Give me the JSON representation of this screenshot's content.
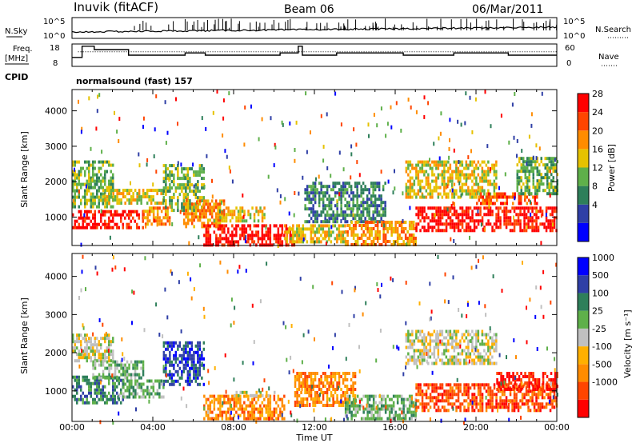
{
  "header": {
    "station": "Inuvik (fitACF)",
    "beam": "Beam 06",
    "date": "06/Mar/2011"
  },
  "top_panels": {
    "nsky": {
      "label": "N.Sky",
      "ticks": [
        "10^5",
        "10^0"
      ],
      "right_label": "N.Search",
      "right_ticks": [
        "10^5",
        "10^0"
      ]
    },
    "freq": {
      "label_line1": "Freq.",
      "label_line2": "[MHz]",
      "ticks": [
        "18",
        "8"
      ],
      "right_label": "Nave",
      "right_ticks": [
        "60",
        "0"
      ],
      "freq_steps": [
        [
          0,
          12
        ],
        [
          0.5,
          12
        ],
        [
          0.5,
          17
        ],
        [
          1.1,
          17
        ],
        [
          1.1,
          15.5
        ],
        [
          2.8,
          15.5
        ],
        [
          2.8,
          13
        ],
        [
          5.6,
          13
        ],
        [
          5.6,
          14
        ],
        [
          6.6,
          14
        ],
        [
          6.6,
          13
        ],
        [
          10.3,
          13
        ],
        [
          10.3,
          14
        ],
        [
          11.2,
          14
        ],
        [
          11.2,
          17
        ],
        [
          11.4,
          17
        ],
        [
          11.4,
          13
        ],
        [
          13.1,
          13
        ],
        [
          13.1,
          14
        ],
        [
          16.4,
          14
        ],
        [
          16.4,
          13
        ],
        [
          18.9,
          13
        ],
        [
          18.9,
          14
        ],
        [
          21.6,
          14
        ],
        [
          21.6,
          13
        ],
        [
          24,
          13
        ]
      ]
    },
    "cpid": {
      "label": "CPID",
      "text": "normalsound (fast) 157"
    }
  },
  "chart_data": [
    {
      "type": "heatmap",
      "name": "power",
      "ylabel": "Slant Range [km]",
      "xlabel": "",
      "xlim": [
        0,
        24
      ],
      "ylim": [
        200,
        4600
      ],
      "yticks": [
        "1000",
        "2000",
        "3000",
        "4000"
      ],
      "colorbar_label": "Power [dB]",
      "colorbar_ticks": [
        "28",
        "24",
        "20",
        "16",
        "12",
        "8",
        "4"
      ],
      "colorbar_colors": [
        "#0000ff",
        "#2f3fa6",
        "#2e7f5a",
        "#5fb04a",
        "#e6c200",
        "#ff8c00",
        "#ff4500",
        "#ff0000"
      ],
      "blobs": [
        {
          "t0": 0.0,
          "t1": 3.5,
          "r0": 700,
          "r1": 1200,
          "bin": 7
        },
        {
          "t0": 3.5,
          "t1": 4.8,
          "r0": 800,
          "r1": 1300,
          "bin": 5
        },
        {
          "t0": 0.0,
          "t1": 2.0,
          "r0": 1300,
          "r1": 2600,
          "bin": 3
        },
        {
          "t0": 1.5,
          "t1": 4.5,
          "r0": 1400,
          "r1": 1800,
          "bin": 4
        },
        {
          "t0": 4.5,
          "t1": 6.5,
          "r0": 1200,
          "r1": 2500,
          "bin": 3
        },
        {
          "t0": 5.5,
          "t1": 7.5,
          "r0": 700,
          "r1": 1500,
          "bin": 5
        },
        {
          "t0": 6.5,
          "t1": 11.0,
          "r0": 250,
          "r1": 800,
          "bin": 7
        },
        {
          "t0": 7.0,
          "t1": 9.5,
          "r0": 900,
          "r1": 1300,
          "bin": 4
        },
        {
          "t0": 10.5,
          "t1": 13.5,
          "r0": 300,
          "r1": 800,
          "bin": 4
        },
        {
          "t0": 11.5,
          "t1": 15.5,
          "r0": 900,
          "r1": 2000,
          "bin": 2
        },
        {
          "t0": 13.5,
          "t1": 17.0,
          "r0": 250,
          "r1": 900,
          "bin": 5
        },
        {
          "t0": 16.5,
          "t1": 21.0,
          "r0": 1600,
          "r1": 2600,
          "bin": 4
        },
        {
          "t0": 17.0,
          "t1": 24.0,
          "r0": 600,
          "r1": 1300,
          "bin": 7
        },
        {
          "t0": 20.0,
          "t1": 23.0,
          "r0": 1400,
          "r1": 1700,
          "bin": 6
        },
        {
          "t0": 22.0,
          "t1": 24.0,
          "r0": 1700,
          "r1": 2700,
          "bin": 3
        }
      ]
    },
    {
      "type": "heatmap",
      "name": "velocity",
      "ylabel": "Slant Range [km]",
      "xlabel": "Time UT",
      "xlim": [
        0,
        24
      ],
      "ylim": [
        200,
        4600
      ],
      "yticks": [
        "1000",
        "2000",
        "3000",
        "4000"
      ],
      "xticks": [
        "00:00",
        "04:00",
        "08:00",
        "12:00",
        "16:00",
        "20:00",
        "00:00"
      ],
      "colorbar_label": "Velocity [m s⁻¹]",
      "colorbar_ticks": [
        "1000",
        "500",
        "100",
        "25",
        "-25",
        "-100",
        "-500",
        "-1000"
      ],
      "colorbar_colors": [
        "#ff0000",
        "#ff4500",
        "#ff8c00",
        "#ffb000",
        "#c0c0c0",
        "#5fb04a",
        "#2e7f5a",
        "#2f3fa6",
        "#0000ff"
      ],
      "blobs": [
        {
          "t0": 0.0,
          "t1": 2.5,
          "r0": 700,
          "r1": 1400,
          "bin": 6
        },
        {
          "t0": 2.5,
          "t1": 4.5,
          "r0": 800,
          "r1": 1300,
          "bin": 5
        },
        {
          "t0": 0.0,
          "t1": 2.0,
          "r0": 1800,
          "r1": 2500,
          "bin": 4
        },
        {
          "t0": 1.0,
          "t1": 3.5,
          "r0": 1300,
          "r1": 1800,
          "bin": 5
        },
        {
          "t0": 4.5,
          "t1": 6.5,
          "r0": 1200,
          "r1": 2300,
          "bin": 7
        },
        {
          "t0": 6.5,
          "t1": 10.5,
          "r0": 300,
          "r1": 900,
          "bin": 2
        },
        {
          "t0": 8.0,
          "t1": 10.0,
          "r0": 900,
          "r1": 1000,
          "bin": 4
        },
        {
          "t0": 11.0,
          "t1": 14.0,
          "r0": 600,
          "r1": 1500,
          "bin": 2
        },
        {
          "t0": 13.5,
          "t1": 17.0,
          "r0": 300,
          "r1": 900,
          "bin": 5
        },
        {
          "t0": 16.5,
          "t1": 21.0,
          "r0": 1700,
          "r1": 2600,
          "bin": 4
        },
        {
          "t0": 17.0,
          "t1": 24.0,
          "r0": 500,
          "r1": 1200,
          "bin": 1
        },
        {
          "t0": 21.0,
          "t1": 24.0,
          "r0": 1000,
          "r1": 1500,
          "bin": 0
        }
      ]
    }
  ]
}
